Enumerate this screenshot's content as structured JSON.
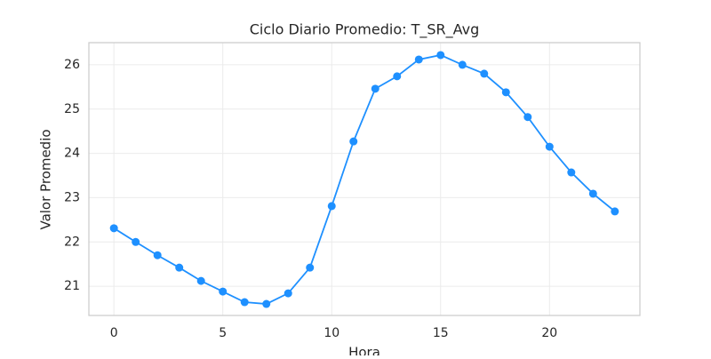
{
  "chart_data": {
    "type": "line",
    "title": "Ciclo Diario Promedio: T_SR_Avg",
    "x_label": "Hora",
    "y_label": "Valor Promedio",
    "x": [
      0,
      1,
      2,
      3,
      4,
      5,
      6,
      7,
      8,
      9,
      10,
      11,
      12,
      13,
      14,
      15,
      16,
      17,
      18,
      19,
      20,
      21,
      22,
      23
    ],
    "series": [
      {
        "name": "T_SR_Avg",
        "color": "#1e90ff",
        "values": [
          22.31,
          22.0,
          21.7,
          21.42,
          21.12,
          20.88,
          20.64,
          20.6,
          20.84,
          21.42,
          22.81,
          24.27,
          25.46,
          25.74,
          26.12,
          26.22,
          26.0,
          25.8,
          25.38,
          24.82,
          24.15,
          23.57,
          23.09,
          22.69
        ]
      }
    ],
    "xlim": [
      -1.15,
      24.15
    ],
    "xticks": [
      0,
      5,
      10,
      15,
      20
    ],
    "ylim": [
      20.34,
      26.5
    ],
    "yticks": [
      21,
      22,
      23,
      24,
      25,
      26
    ],
    "grid": true
  }
}
